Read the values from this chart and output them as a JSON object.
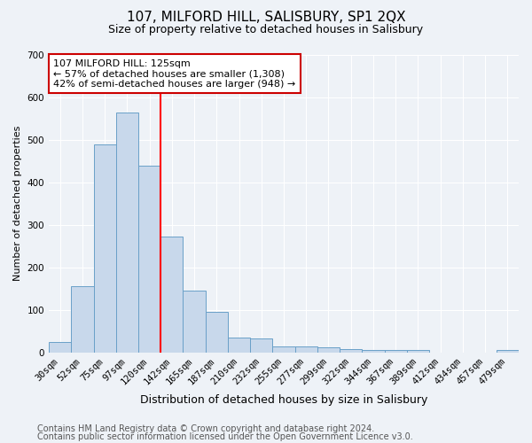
{
  "title": "107, MILFORD HILL, SALISBURY, SP1 2QX",
  "subtitle": "Size of property relative to detached houses in Salisbury",
  "xlabel": "Distribution of detached houses by size in Salisbury",
  "ylabel": "Number of detached properties",
  "bar_color": "#c8d8eb",
  "bar_edge_color": "#6aa0c8",
  "background_color": "#eef2f7",
  "grid_color": "#ffffff",
  "categories": [
    "30sqm",
    "52sqm",
    "75sqm",
    "97sqm",
    "120sqm",
    "142sqm",
    "165sqm",
    "187sqm",
    "210sqm",
    "232sqm",
    "255sqm",
    "277sqm",
    "299sqm",
    "322sqm",
    "344sqm",
    "367sqm",
    "389sqm",
    "412sqm",
    "434sqm",
    "457sqm",
    "479sqm"
  ],
  "values": [
    25,
    155,
    488,
    563,
    438,
    273,
    145,
    95,
    35,
    33,
    13,
    15,
    11,
    8,
    6,
    5,
    5,
    0,
    0,
    0,
    6
  ],
  "red_line_x": 4.5,
  "ylim": [
    0,
    700
  ],
  "yticks": [
    0,
    100,
    200,
    300,
    400,
    500,
    600,
    700
  ],
  "annotation_text": "107 MILFORD HILL: 125sqm\n← 57% of detached houses are smaller (1,308)\n42% of semi-detached houses are larger (948) →",
  "annotation_box_color": "#ffffff",
  "annotation_box_edge": "#cc0000",
  "footnote1": "Contains HM Land Registry data © Crown copyright and database right 2024.",
  "footnote2": "Contains public sector information licensed under the Open Government Licence v3.0.",
  "title_fontsize": 11,
  "subtitle_fontsize": 9,
  "xlabel_fontsize": 9,
  "ylabel_fontsize": 8,
  "tick_fontsize": 7.5,
  "annotation_fontsize": 8,
  "footnote_fontsize": 7
}
